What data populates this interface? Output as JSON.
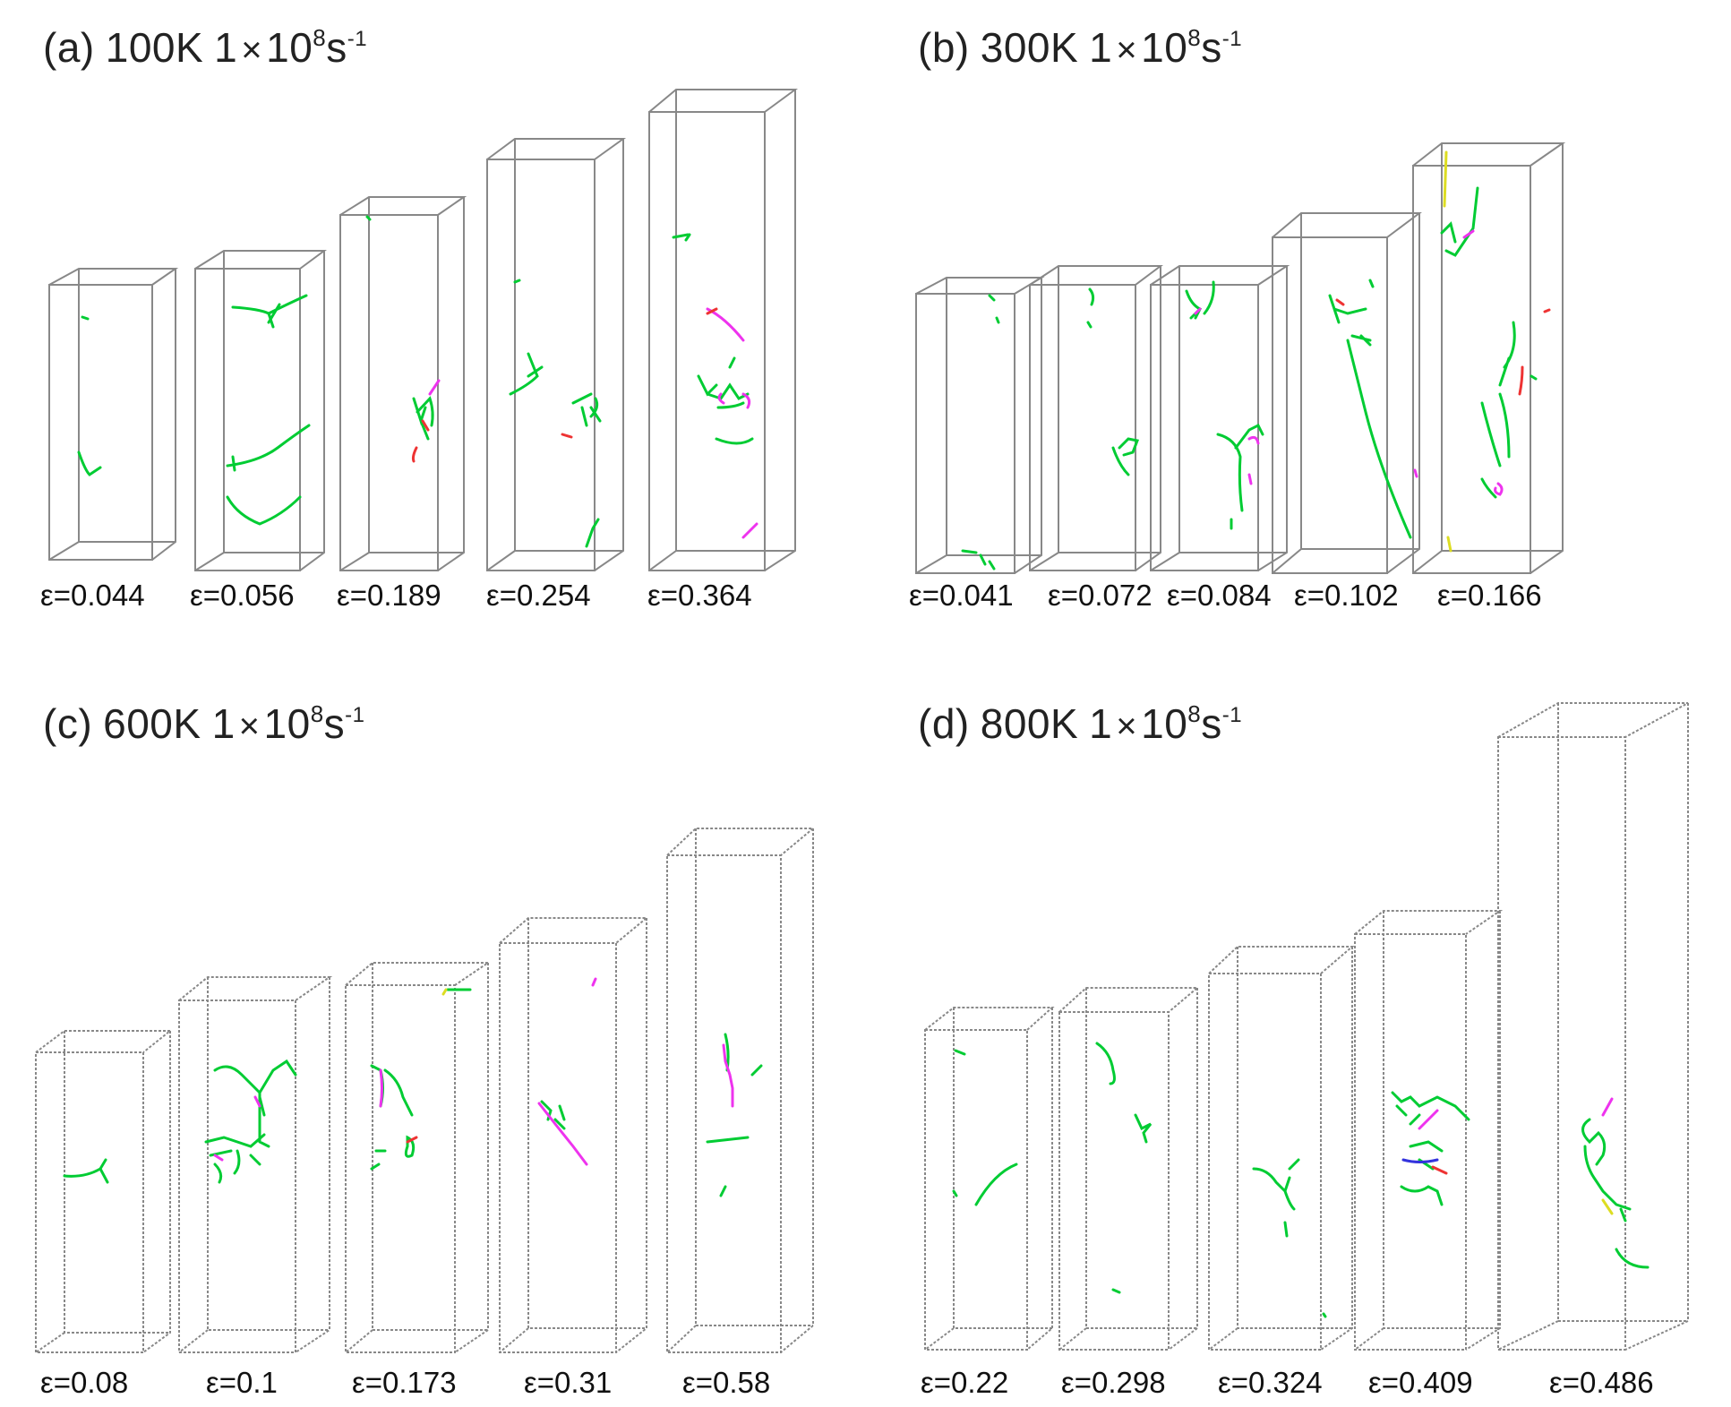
{
  "colors": {
    "box": "#888888",
    "perfect_dislocation": "#00cc33",
    "partial_pink": "#ee33ee",
    "partial_red": "#ee3333",
    "partial_yellow": "#dddd22",
    "partial_blue": "#3333dd"
  },
  "panels": [
    {
      "label": "(a)",
      "temperature": "100K",
      "rate_prefix": "1",
      "rate_times": "×",
      "rate_base": "10",
      "rate_exp": "8",
      "rate_unit": "s",
      "rate_unit_exp": "-1",
      "strains": [
        "ε=0.044",
        "ε=0.056",
        "ε=0.189",
        "ε=0.254",
        "ε=0.364"
      ]
    },
    {
      "label": "(b)",
      "temperature": "300K",
      "rate_prefix": "1",
      "rate_times": "×",
      "rate_base": "10",
      "rate_exp": "8",
      "rate_unit": "s",
      "rate_unit_exp": "-1",
      "strains": [
        "ε=0.041",
        "ε=0.072",
        "ε=0.084",
        "ε=0.102",
        "ε=0.166"
      ]
    },
    {
      "label": "(c)",
      "temperature": "600K",
      "rate_prefix": "1",
      "rate_times": "×",
      "rate_base": "10",
      "rate_exp": "8",
      "rate_unit": "s",
      "rate_unit_exp": "-1",
      "strains": [
        "ε=0.08",
        "ε=0.1",
        "ε=0.173",
        "ε=0.31",
        "ε=0.58"
      ]
    },
    {
      "label": "(d)",
      "temperature": "800K",
      "rate_prefix": "1",
      "rate_times": "×",
      "rate_base": "10",
      "rate_exp": "8",
      "rate_unit": "s",
      "rate_unit_exp": "-1",
      "strains": [
        "ε=0.22",
        "ε=0.298",
        "ε=0.324",
        "ε=0.409",
        "ε=0.486"
      ]
    }
  ]
}
